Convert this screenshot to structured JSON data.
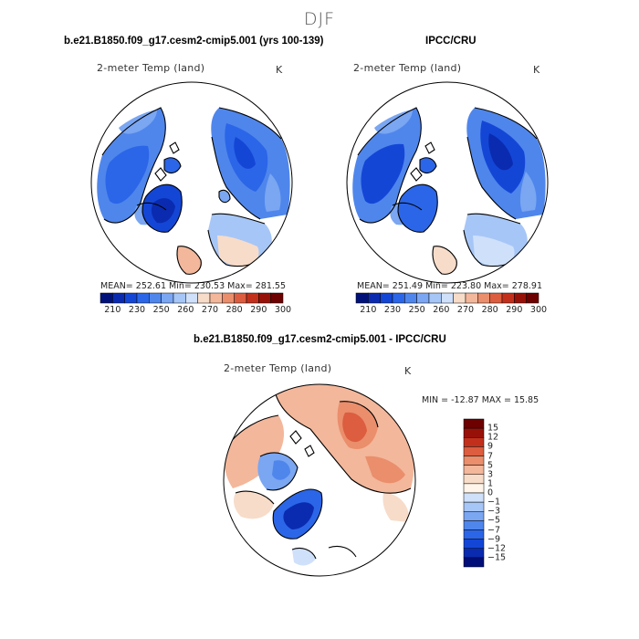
{
  "title": "DJF",
  "colors": {
    "abs_scale": [
      "#00127a",
      "#0a2bb0",
      "#1446d6",
      "#2b66e8",
      "#4f86ec",
      "#7aa6f2",
      "#a6c6f7",
      "#cfe0fa",
      "#f7dcc9",
      "#f3b79b",
      "#ea8e6c",
      "#dc5d3f",
      "#c2301c",
      "#981108",
      "#6d0000"
    ],
    "diff_scale": [
      "#000e7a",
      "#0a2bb0",
      "#1446d6",
      "#2b66e8",
      "#4f86ec",
      "#7aa6f2",
      "#a6c6f7",
      "#cfe0fa",
      "#fff5ea",
      "#f7dcc9",
      "#f3b79b",
      "#ea8e6c",
      "#dc5d3f",
      "#c2301c",
      "#981108",
      "#6d0000"
    ],
    "land_warm": "#f4b89e",
    "land_cold": "#3a6fe0",
    "coast": "#000000"
  },
  "panels": {
    "model": {
      "header": "b.e21.B1850.f09_g17.cesm2-cmip5.001 (yrs 100-139)",
      "variable": "2-meter Temp (land)",
      "units": "K",
      "stats": "MEAN= 252.61   Min= 230.53   Max= 281.55",
      "colorbar_labels": [
        "210",
        "230",
        "250",
        "260",
        "270",
        "280",
        "290",
        "300"
      ]
    },
    "obs": {
      "header": "IPCC/CRU",
      "variable": "2-meter Temp (land)",
      "units": "K",
      "stats": "MEAN= 251.49   Min= 223.80   Max= 278.91",
      "colorbar_labels": [
        "210",
        "230",
        "250",
        "260",
        "270",
        "280",
        "290",
        "300"
      ]
    },
    "diff": {
      "header": "b.e21.B1850.f09_g17.cesm2-cmip5.001 - IPCC/CRU",
      "variable": "2-meter Temp (land)",
      "units": "K",
      "stats": "MIN = -12.87  MAX =  15.85",
      "colorbar_labels": [
        "15",
        "12",
        "9",
        "7",
        "5",
        "3",
        "1",
        "0",
        "−1",
        "−3",
        "−5",
        "−7",
        "−9",
        "−12",
        "−15"
      ]
    }
  }
}
